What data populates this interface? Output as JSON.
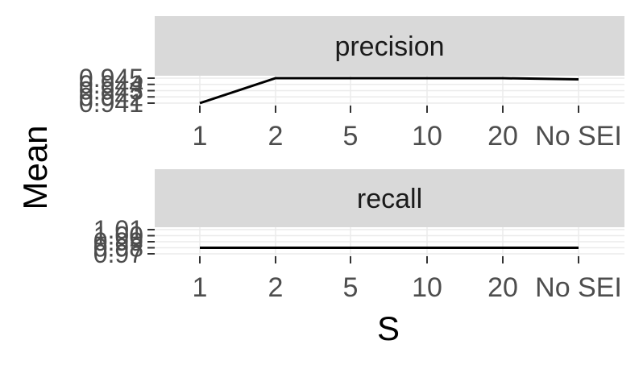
{
  "chart_data": {
    "type": "line",
    "xlabel": "S",
    "ylabel": "Mean",
    "categories": [
      "1",
      "2",
      "5",
      "10",
      "20",
      "No SEI"
    ],
    "panels": [
      {
        "strip_label": "precision",
        "yticks": [
          "0.941",
          "0.942",
          "0.943",
          "0.944",
          "0.945"
        ],
        "ylim": [
          0.941,
          0.945
        ],
        "values": [
          0.941,
          0.945,
          0.945,
          0.945,
          0.945,
          0.9448
        ]
      },
      {
        "strip_label": "recall",
        "yticks": [
          "0.97",
          "0.98",
          "0.99",
          "1.00",
          "1.01"
        ],
        "ylim": [
          0.97,
          1.01
        ],
        "values": [
          0.98,
          0.98,
          0.98,
          0.98,
          0.98,
          0.98
        ]
      }
    ],
    "colors": {
      "strip": "#d9d9d9",
      "line": "#000000",
      "tick_text": "#4d4d4d",
      "grid": "#ebebeb"
    }
  }
}
